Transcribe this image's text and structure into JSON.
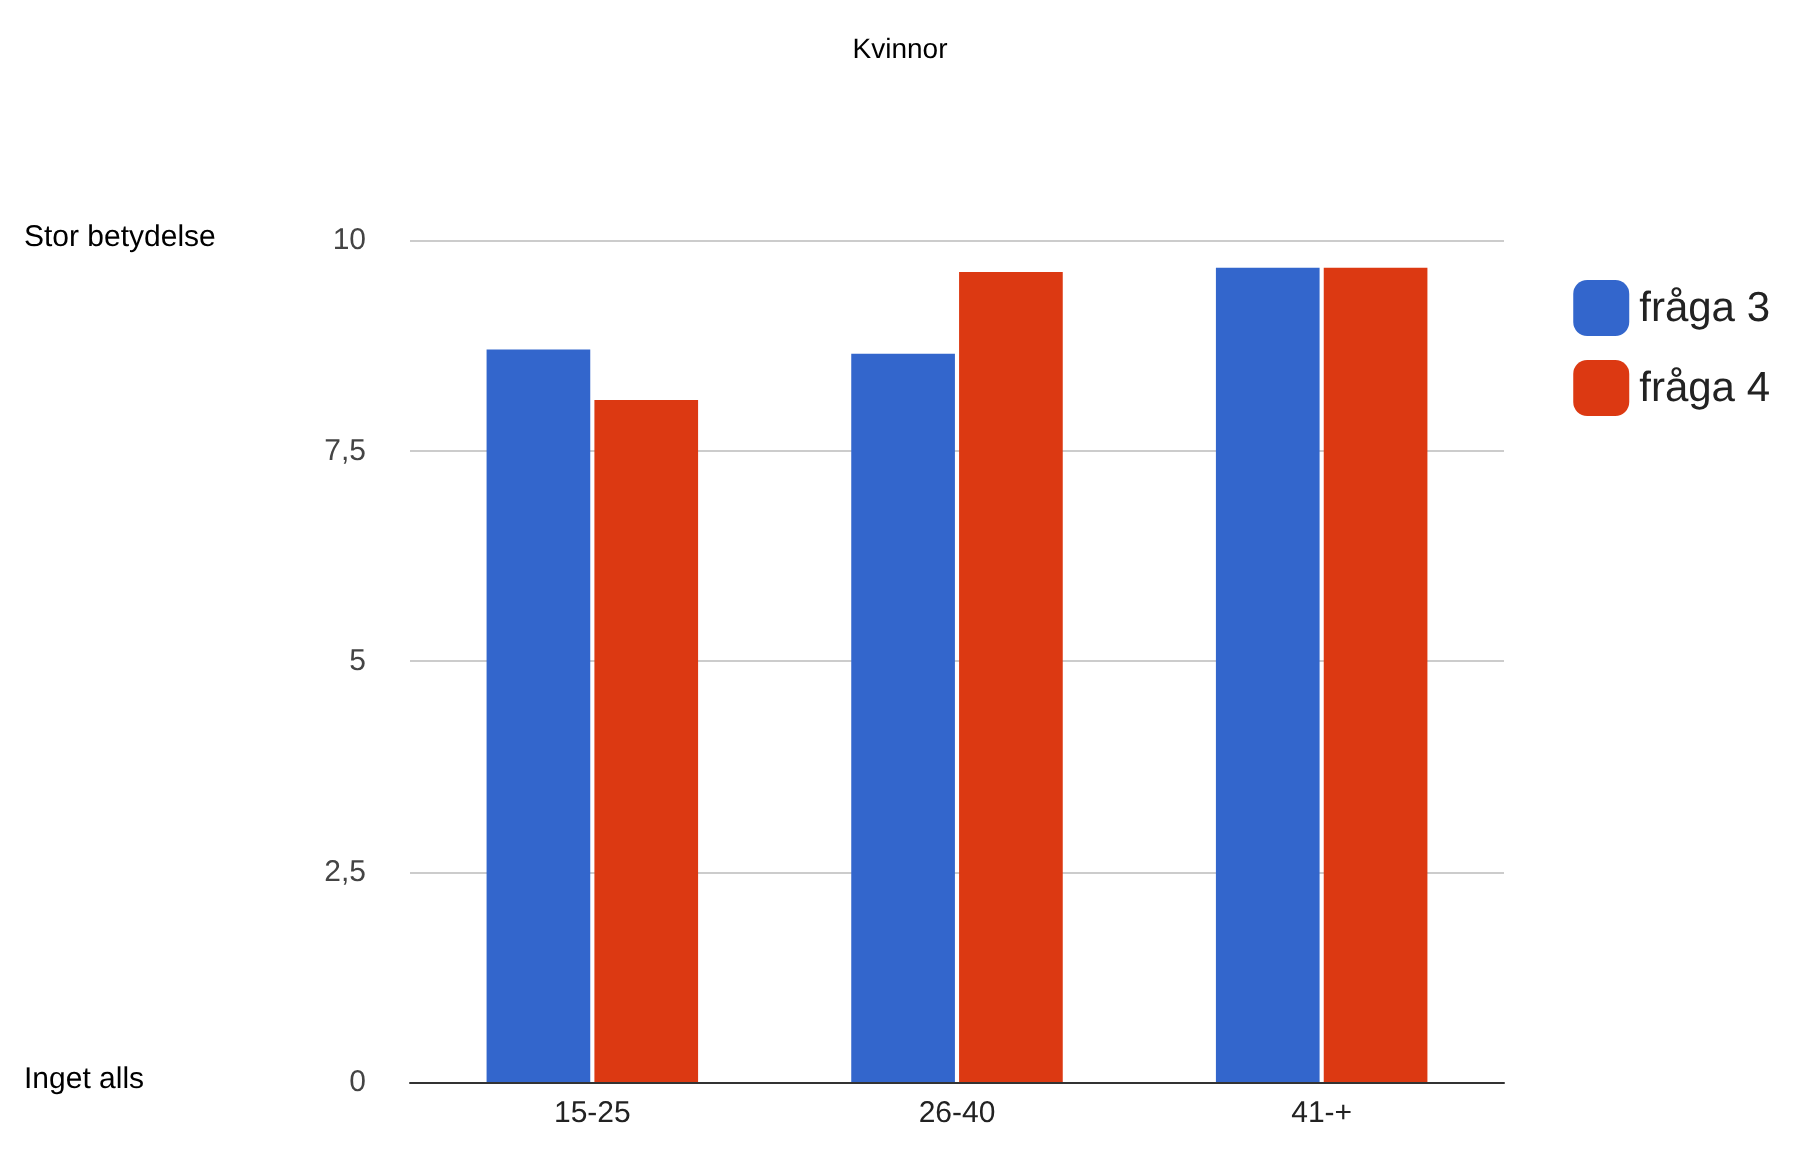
{
  "chart_data": {
    "type": "bar",
    "title": "Kvinnor",
    "categories": [
      "15-25",
      "26-40",
      "41-+"
    ],
    "series": [
      {
        "name": "fråga 3",
        "color": "#3366cc",
        "values": [
          8.7,
          8.65,
          9.67
        ]
      },
      {
        "name": "fråga 4",
        "color": "#dc3912",
        "values": [
          8.1,
          9.62,
          9.67
        ]
      }
    ],
    "ylim": [
      0,
      10
    ],
    "yticks": [
      0,
      {
        "value": 2.5,
        "label": "2,5"
      },
      5,
      {
        "value": 7.5,
        "label": "7,5"
      },
      10
    ],
    "annotations": [
      "Stor betydelse",
      "Inget alls"
    ],
    "grid": "y",
    "legend": "right"
  }
}
